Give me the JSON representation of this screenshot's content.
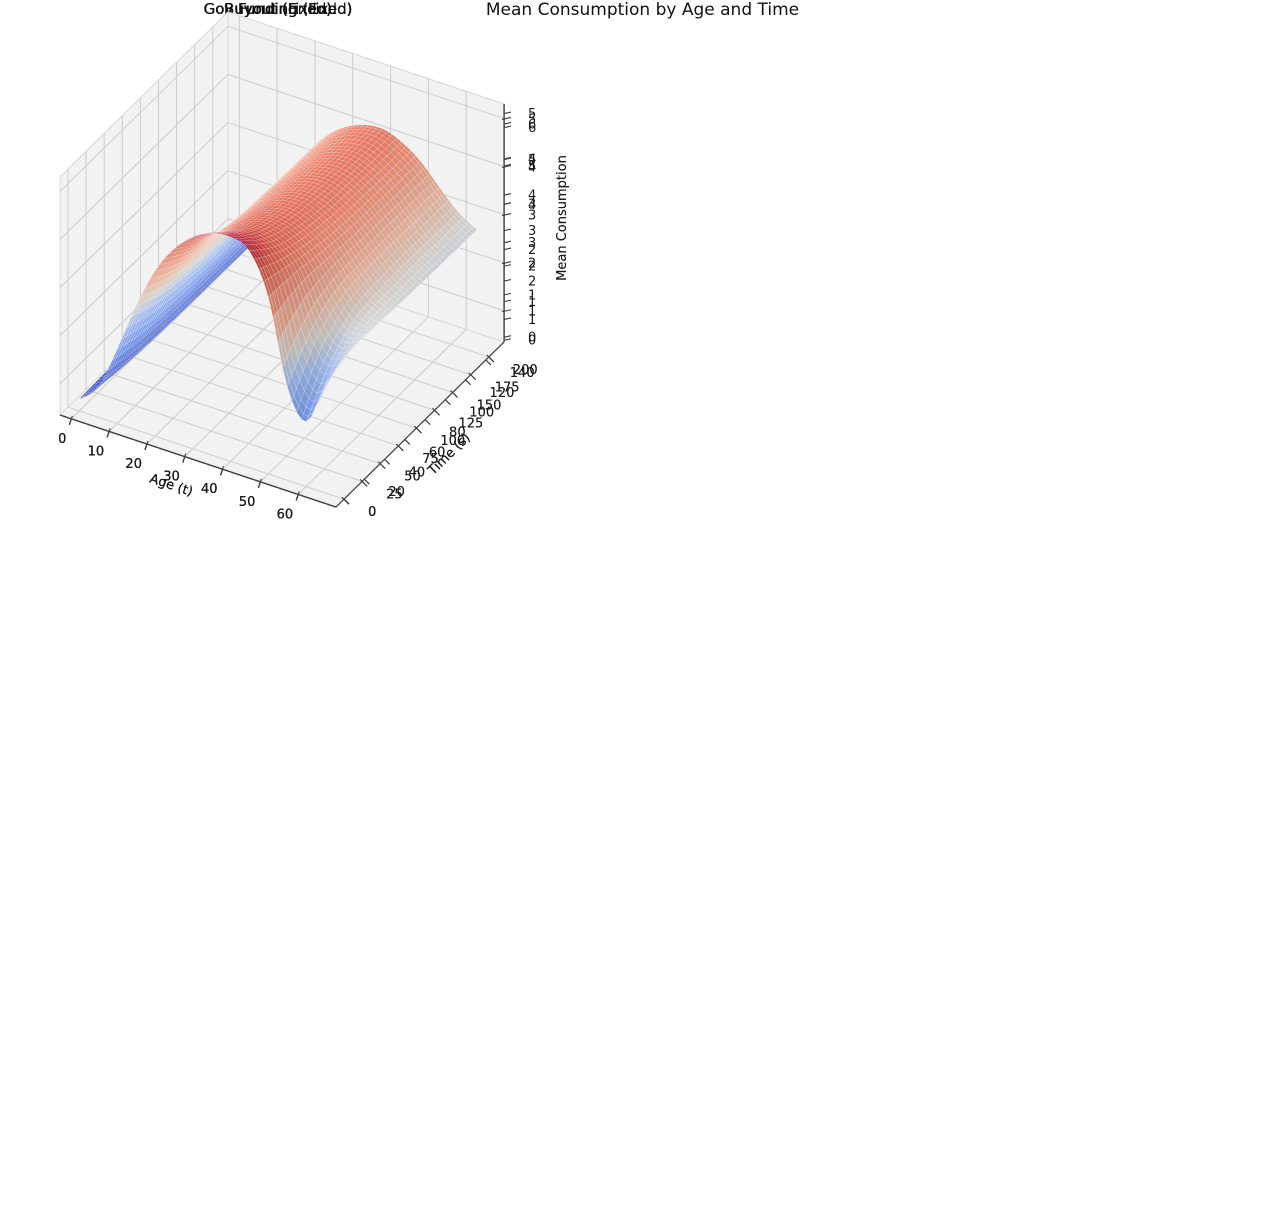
{
  "figure_title": "Mean Consumption by Age and Time",
  "colors": {
    "background": "#ffffff",
    "pane": "#f2f2f2",
    "pane_edge": "#dadada",
    "grid": "#cccccc",
    "spine": "#3f3f3f",
    "tick_text": "#1a1a1a",
    "title_text": "#111111",
    "mesh_line": "rgba(255,255,255,0.28)",
    "colormap": "coolwarm",
    "coolwarm_stops": [
      [
        0.0,
        "#3b4cc0"
      ],
      [
        0.25,
        "#7b9ff9"
      ],
      [
        0.4,
        "#aac7fd"
      ],
      [
        0.5,
        "#dddcdb"
      ],
      [
        0.6,
        "#f5c4ad"
      ],
      [
        0.75,
        "#f4927a"
      ],
      [
        0.875,
        "#de604d"
      ],
      [
        1.0,
        "#b40426"
      ]
    ]
  },
  "chart_data": [
    {
      "type": "surface3d",
      "panel_id": "buyout-fixed",
      "title": "Buyout (Fixed)",
      "xlabel": "Age (t)",
      "ylabel": "Time (s)",
      "zlabel": "Mean Consumption",
      "x_ticks": [
        0,
        10,
        20,
        30,
        40,
        50,
        60
      ],
      "y_ticks": [
        0,
        20,
        40,
        60,
        80,
        100,
        120,
        140
      ],
      "z_ticks": [
        0,
        1,
        2,
        3,
        4,
        5,
        6
      ],
      "xlim": [
        -3,
        70
      ],
      "ylim": [
        -8,
        158
      ],
      "zlim": [
        -0.15,
        6.55
      ],
      "ages": [
        0,
        5,
        10,
        15,
        20,
        25,
        30,
        35,
        40,
        45,
        50,
        55,
        60,
        65
      ],
      "times": [
        0,
        25,
        50,
        75,
        100,
        125,
        150
      ],
      "z_grid": [
        [
          0.19,
          0.82,
          1.58,
          2.5,
          3.26,
          3.84,
          4.22,
          4.46,
          4.61,
          4.66,
          4.57,
          4.25,
          3.6,
          3.45
        ],
        [
          0.21,
          0.88,
          1.71,
          2.69,
          3.52,
          4.14,
          4.55,
          4.81,
          4.96,
          5.01,
          4.96,
          4.65,
          4.2,
          4.05
        ],
        [
          0.22,
          0.93,
          1.8,
          2.83,
          3.71,
          4.36,
          4.8,
          5.07,
          5.23,
          5.29,
          5.23,
          4.93,
          4.45,
          4.3
        ],
        [
          0.23,
          0.97,
          1.87,
          2.95,
          3.86,
          4.54,
          5.0,
          5.28,
          5.45,
          5.51,
          5.45,
          5.22,
          4.8,
          4.6
        ],
        [
          0.24,
          1.0,
          1.94,
          3.06,
          4.01,
          4.71,
          5.18,
          5.48,
          5.65,
          5.71,
          5.65,
          5.45,
          5.07,
          4.85
        ],
        [
          0.24,
          1.04,
          2.01,
          3.17,
          4.15,
          4.88,
          5.37,
          5.67,
          5.86,
          5.92,
          5.86,
          5.66,
          5.34,
          5.08
        ],
        [
          0.25,
          1.07,
          2.08,
          3.28,
          4.28,
          5.04,
          5.54,
          5.86,
          6.05,
          6.11,
          6.05,
          5.85,
          5.52,
          5.26
        ]
      ]
    },
    {
      "type": "surface3d",
      "panel_id": "buyout-endo",
      "title": "Buyout (Endo)",
      "xlabel": "Age (t)",
      "ylabel": "Time (s)",
      "zlabel": "",
      "x_ticks": [
        0,
        10,
        20,
        30,
        40,
        50,
        60
      ],
      "y_ticks": [
        0,
        25,
        50,
        75,
        100,
        125,
        150,
        175,
        200
      ],
      "z_ticks": [
        0,
        1,
        2,
        3,
        4,
        5
      ],
      "xlim": [
        -3,
        70
      ],
      "ylim": [
        -11,
        221
      ],
      "zlim": [
        -0.05,
        5.2
      ],
      "ages": [
        0,
        5,
        10,
        15,
        20,
        25,
        30,
        35,
        40,
        45,
        50,
        55,
        60,
        65
      ],
      "times": [
        0,
        35,
        70,
        105,
        140,
        175,
        210
      ],
      "z_grid": [
        [
          0.27,
          0.95,
          1.86,
          2.86,
          3.71,
          4.29,
          4.66,
          4.88,
          4.93,
          4.82,
          4.21,
          2.6,
          1.9,
          2.9
        ],
        [
          0.24,
          0.87,
          1.7,
          2.62,
          3.4,
          3.93,
          4.27,
          4.46,
          4.51,
          4.41,
          4.06,
          3.2,
          2.7,
          3.02
        ],
        [
          0.23,
          0.83,
          1.62,
          2.49,
          3.23,
          3.74,
          4.07,
          4.25,
          4.3,
          4.2,
          3.94,
          3.39,
          2.98,
          2.99
        ],
        [
          0.22,
          0.81,
          1.57,
          2.42,
          3.14,
          3.64,
          3.95,
          4.13,
          4.18,
          4.09,
          3.85,
          3.44,
          3.07,
          2.96
        ],
        [
          0.22,
          0.8,
          1.55,
          2.39,
          3.09,
          3.58,
          3.89,
          4.07,
          4.11,
          4.02,
          3.8,
          3.43,
          3.08,
          2.92
        ],
        [
          0.22,
          0.79,
          1.54,
          2.37,
          3.07,
          3.56,
          3.86,
          4.04,
          4.08,
          3.99,
          3.78,
          3.42,
          3.07,
          2.9
        ],
        [
          0.22,
          0.79,
          1.53,
          2.36,
          3.06,
          3.54,
          3.85,
          4.02,
          4.06,
          3.98,
          3.76,
          3.41,
          3.06,
          2.88
        ]
      ]
    },
    {
      "type": "surface3d",
      "panel_id": "gov-funding-fixed",
      "title": "Gov Funding (Fixed)",
      "xlabel": "Age (t)",
      "ylabel": "Time (s)",
      "zlabel": "Mean Consumption",
      "x_ticks": [
        0,
        10,
        20,
        30,
        40,
        50,
        60
      ],
      "y_ticks": [
        0,
        20,
        40,
        60,
        80,
        100,
        120,
        140
      ],
      "z_ticks": [
        1,
        2,
        3,
        4,
        5,
        6
      ],
      "xlim": [
        -3,
        70
      ],
      "ylim": [
        -8,
        158
      ],
      "zlim": [
        0.4,
        6.6
      ],
      "ages": [
        0,
        5,
        10,
        15,
        20,
        25,
        30,
        35,
        40,
        45,
        50,
        55,
        60,
        65
      ],
      "times": [
        0,
        25,
        50,
        75,
        100,
        125,
        150
      ],
      "z_grid": [
        [
          0.62,
          0.8,
          1.55,
          2.44,
          3.2,
          3.76,
          4.14,
          4.37,
          4.51,
          4.51,
          4.12,
          3.6,
          3.2,
          3.3
        ],
        [
          0.64,
          0.86,
          1.66,
          2.62,
          3.42,
          4.02,
          4.43,
          4.68,
          4.83,
          4.88,
          4.61,
          4.2,
          3.8,
          3.85
        ],
        [
          0.66,
          0.91,
          1.76,
          2.77,
          3.62,
          4.26,
          4.69,
          4.96,
          5.12,
          5.17,
          4.99,
          4.47,
          3.95,
          3.95
        ],
        [
          0.68,
          0.96,
          1.85,
          2.92,
          3.82,
          4.5,
          4.95,
          5.23,
          5.4,
          5.45,
          5.32,
          4.95,
          4.47,
          4.34
        ],
        [
          0.7,
          1.0,
          1.94,
          3.06,
          4.01,
          4.71,
          5.18,
          5.48,
          5.65,
          5.71,
          5.61,
          5.32,
          4.91,
          4.73
        ],
        [
          0.72,
          1.05,
          2.03,
          3.2,
          4.18,
          4.92,
          5.41,
          5.72,
          5.9,
          5.97,
          5.88,
          5.63,
          5.26,
          5.07
        ],
        [
          0.74,
          1.09,
          2.11,
          3.33,
          4.35,
          5.12,
          5.63,
          5.95,
          6.14,
          6.21,
          6.13,
          5.9,
          5.54,
          5.3
        ]
      ]
    },
    {
      "type": "surface3d",
      "panel_id": "gov-funding-endo",
      "title": "Gov Funding (Endo)",
      "xlabel": "Age (t)",
      "ylabel": "Time (s)",
      "zlabel": "",
      "x_ticks": [
        0,
        10,
        20,
        30,
        40,
        50,
        60
      ],
      "y_ticks": [
        0,
        25,
        50,
        75,
        100,
        125,
        150,
        175,
        200
      ],
      "z_ticks": [
        1,
        2,
        3,
        4,
        5
      ],
      "xlim": [
        -3,
        70
      ],
      "ylim": [
        -11,
        221
      ],
      "zlim": [
        0.35,
        5.3
      ],
      "ages": [
        0,
        5,
        10,
        15,
        20,
        25,
        30,
        35,
        40,
        45,
        50,
        55,
        60,
        65
      ],
      "times": [
        0,
        35,
        70,
        105,
        140,
        175,
        210
      ],
      "z_grid": [
        [
          0.6,
          0.97,
          1.89,
          2.92,
          3.78,
          4.37,
          4.75,
          4.97,
          5.02,
          4.86,
          4.03,
          2.3,
          1.7,
          2.6
        ],
        [
          0.62,
          0.89,
          1.72,
          2.66,
          3.44,
          3.99,
          4.33,
          4.53,
          4.58,
          4.43,
          3.99,
          3.02,
          2.48,
          2.78
        ],
        [
          0.64,
          0.84,
          1.64,
          2.53,
          3.28,
          3.79,
          4.12,
          4.31,
          4.35,
          4.21,
          3.89,
          3.32,
          2.87,
          2.79
        ],
        [
          0.65,
          0.82,
          1.6,
          2.46,
          3.19,
          3.69,
          4.01,
          4.2,
          4.24,
          4.1,
          3.81,
          3.36,
          2.95,
          2.76
        ],
        [
          0.66,
          0.81,
          1.58,
          2.44,
          3.16,
          3.65,
          3.97,
          4.15,
          4.19,
          4.06,
          3.78,
          3.37,
          2.97,
          2.74
        ],
        [
          0.66,
          0.81,
          1.57,
          2.42,
          3.14,
          3.63,
          3.94,
          4.12,
          4.17,
          4.03,
          3.76,
          3.35,
          2.96,
          2.73
        ],
        [
          0.66,
          0.8,
          1.56,
          2.41,
          3.13,
          3.62,
          3.93,
          4.11,
          4.16,
          4.02,
          3.75,
          3.34,
          2.95,
          2.72
        ]
      ]
    }
  ]
}
